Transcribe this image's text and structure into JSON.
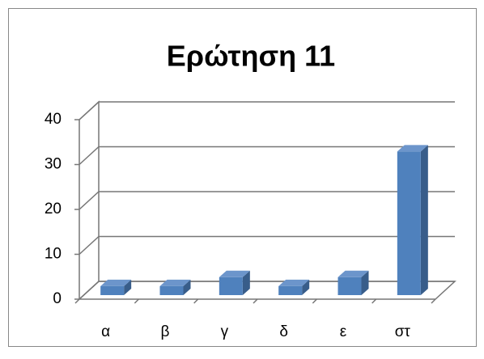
{
  "chart_data": {
    "type": "bar3d",
    "title": "Ερώτηση 11",
    "categories": [
      "α",
      "β",
      "γ",
      "δ",
      "ε",
      "στ"
    ],
    "values": [
      2,
      2,
      4,
      2,
      4,
      32
    ],
    "color": "#4f81bd",
    "ylim": [
      0,
      40
    ],
    "yticks": [
      0,
      10,
      20,
      30,
      40
    ],
    "grid": true
  }
}
